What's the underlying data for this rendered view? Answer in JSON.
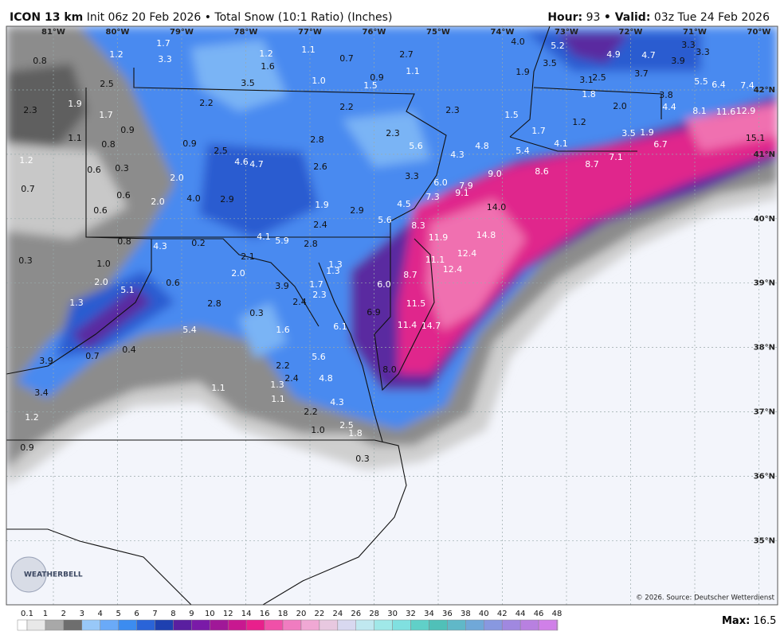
{
  "header": {
    "model": "ICON 13 km",
    "init": "Init 06z 20 Feb 2026",
    "field": "• Total Snow (10:1 Ratio) (Inches)",
    "hour_label": "Hour:",
    "hour": "93",
    "valid_label": "• Valid:",
    "valid": "03z Tue 24 Feb 2026"
  },
  "map": {
    "longitudes": [
      "81°W",
      "80°W",
      "79°W",
      "78°W",
      "77°W",
      "76°W",
      "75°W",
      "74°W",
      "73°W",
      "72°W",
      "71°W",
      "70°W"
    ],
    "latitudes": [
      "42°N",
      "41°N",
      "40°N",
      "39°N",
      "38°N",
      "37°N",
      "36°N",
      "35°N"
    ],
    "snow_labels": [
      "1.7",
      "1.2",
      "3.3",
      "0.8",
      "1.2",
      "1.1",
      "1.6",
      "0.7",
      "2.7",
      "4.0",
      "5.2",
      "4.9",
      "4.7",
      "3.3",
      "3.3",
      "3.9",
      "1.1",
      "0.9",
      "1.5",
      "1.0",
      "3.5",
      "2.5",
      "3.5",
      "1.9",
      "3.7",
      "3.1",
      "2.5",
      "5.5",
      "6.4",
      "7.4",
      "1.8",
      "3.8",
      "2.3",
      "1.9",
      "2.2",
      "2.2",
      "2.3",
      "2.0",
      "4.4",
      "8.1",
      "11.6",
      "1.7",
      "1.5",
      "1.2",
      "0.9",
      "2.8",
      "2.3",
      "1.7",
      "3.5",
      "1.9",
      "1.1",
      "0.8",
      "0.9",
      "5.6",
      "4.8",
      "4.1",
      "6.7",
      "15.1",
      "2.5",
      "5.4",
      "7.1",
      "1.2",
      "4.6",
      "4.7",
      "2.6",
      "4.3",
      "8.7",
      "8.6",
      "0.6",
      "0.3",
      "2.0",
      "3.3",
      "6.0",
      "9.0",
      "7.9",
      "0.7",
      "0.6",
      "4.0",
      "2.9",
      "7.3",
      "9.1",
      "2.0",
      "1.9",
      "4.5",
      "14.0",
      "0.6",
      "2.9",
      "5.6",
      "2.4",
      "8.3",
      "4.1",
      "5.9",
      "2.8",
      "11.9",
      "14.8",
      "0.8",
      "4.3",
      "0.2",
      "12.4",
      "0.3",
      "1.0",
      "2.1",
      "1.3",
      "1.3",
      "11.1",
      "12.4",
      "2.0",
      "8.7",
      "2.0",
      "5.1",
      "0.6",
      "3.9",
      "1.7",
      "2.3",
      "6.0",
      "2.8",
      "11.5",
      "1.3",
      "0.3",
      "2.4",
      "6.9",
      "5.4",
      "1.6",
      "6.1",
      "11.4",
      "14.7",
      "0.4",
      "0.7",
      "3.9",
      "5.6",
      "2.2",
      "8.0",
      "2.4",
      "4.8",
      "1.3",
      "1.1",
      "3.4",
      "1.1",
      "4.3",
      "2.2",
      "1.2",
      "1.0",
      "2.5",
      "1.8",
      "0.9",
      "0.3",
      "12.9"
    ],
    "credit": "© 2026. Source: Deutscher Wetterdienst",
    "logo": "WEATHERBELL"
  },
  "colorbar": {
    "labels": [
      "0.1",
      "1",
      "2",
      "3",
      "4",
      "5",
      "6",
      "7",
      "8",
      "9",
      "10",
      "12",
      "14",
      "16",
      "18",
      "20",
      "22",
      "24",
      "26",
      "28",
      "30",
      "32",
      "34",
      "36",
      "38",
      "40",
      "42",
      "44",
      "46",
      "48"
    ],
    "colors": [
      "#e8e8e8",
      "#a8a8a8",
      "#6e6e6e",
      "#98c8f8",
      "#6aaaf8",
      "#3c8cf0",
      "#2a64d8",
      "#1e40b0",
      "#5a1fa0",
      "#7a1aa8",
      "#a01898",
      "#c81890",
      "#e8208c",
      "#f050a8",
      "#f07cc0",
      "#f0a8d4",
      "#e8c8e0",
      "#d8d8f0",
      "#c0e8f0",
      "#a0e8e8",
      "#80e0e0",
      "#60d0c8",
      "#50c0b8",
      "#60b8c8",
      "#70a8d8",
      "#8898e0",
      "#a088e0",
      "#b880e0",
      "#d080e8",
      "#d890f0"
    ]
  },
  "max": {
    "label": "Max:",
    "value": "16.5"
  }
}
